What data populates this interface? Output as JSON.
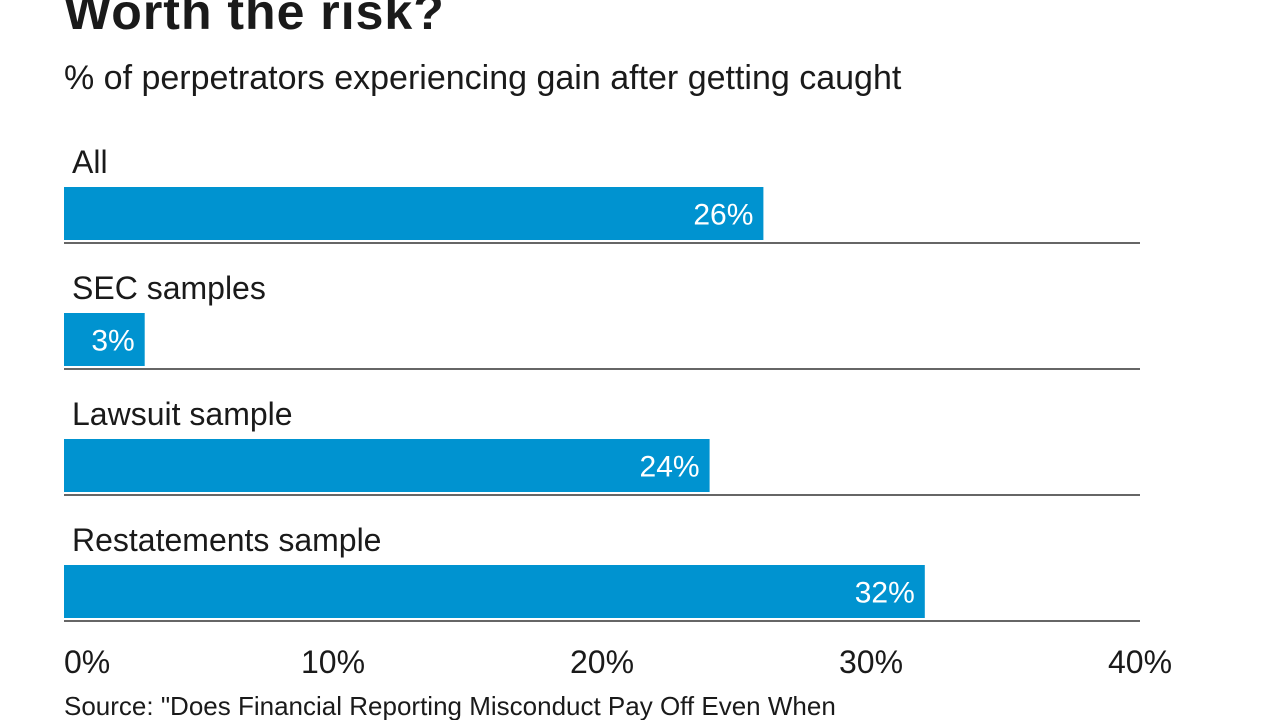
{
  "colors": {
    "bar": "#0093d0",
    "divider": "#333333",
    "text": "#1a1a1a",
    "bar_label": "#ffffff"
  },
  "chart_data": {
    "type": "bar",
    "orientation": "horizontal",
    "title": "Worth the risk?",
    "subtitle": "% of perpetrators experiencing gain after getting caught",
    "categories": [
      "All",
      "SEC samples",
      "Lawsuit sample",
      "Restatements sample"
    ],
    "values": [
      26,
      3,
      24,
      32
    ],
    "data_labels": [
      "26%",
      "3%",
      "24%",
      "32%"
    ],
    "xlim": [
      0,
      40
    ],
    "xticks": [
      0,
      10,
      20,
      30,
      40
    ],
    "xtick_labels": [
      "0%",
      "10%",
      "20%",
      "30%",
      "40%"
    ],
    "xlabel": "",
    "ylabel": "",
    "grid": false,
    "legend": "none",
    "source": "Source: \"Does Financial Reporting Misconduct Pay Off Even When"
  }
}
